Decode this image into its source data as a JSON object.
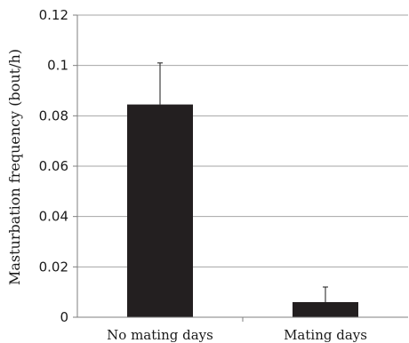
{
  "chart_data": {
    "type": "bar",
    "categories": [
      "No mating days",
      "Mating days"
    ],
    "values": [
      0.0845,
      0.006
    ],
    "error_upper": [
      0.101,
      0.012
    ],
    "ylabel": "Masturbation frequency (bout/h)",
    "xlabel": "",
    "ylim": [
      0,
      0.12
    ],
    "yticks": [
      0,
      0.02,
      0.04,
      0.06,
      0.08,
      0.1,
      0.12
    ],
    "ytick_labels": [
      "0",
      "0.02",
      "0.04",
      "0.06",
      "0.08",
      "0.1",
      "0.12"
    ],
    "grid": true,
    "bar_color": "#231f20",
    "grid_color": "#a6a6a6"
  }
}
